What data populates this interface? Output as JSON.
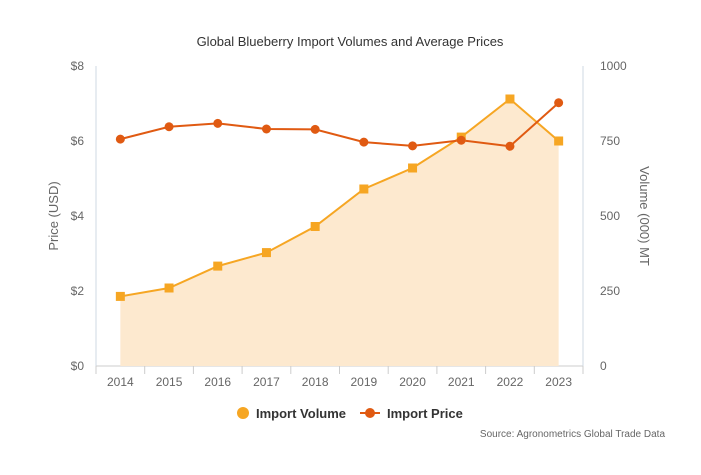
{
  "chart_data": {
    "type": "line",
    "title": "Global Blueberry Import Volumes and Average Prices",
    "categories": [
      "2014",
      "2015",
      "2016",
      "2017",
      "2018",
      "2019",
      "2020",
      "2021",
      "2022",
      "2023"
    ],
    "y_left": {
      "label": "Price (USD)",
      "ylim": [
        0,
        8
      ],
      "ticks": [
        0,
        2,
        4,
        6,
        8
      ],
      "tick_labels": [
        "$0",
        "$2",
        "$4",
        "$6",
        "$8"
      ]
    },
    "y_right": {
      "label": "Volume (000) MT",
      "ylim": [
        0,
        1000
      ],
      "ticks": [
        0,
        250,
        500,
        750,
        1000
      ],
      "tick_labels": [
        "0",
        "250",
        "500",
        "750",
        "1000"
      ]
    },
    "series": [
      {
        "name": "Import Volume",
        "axis": "right",
        "style": "area",
        "marker": "square",
        "color": "#f6a623",
        "fill": "#fde9cf",
        "values": [
          232,
          260,
          333,
          378,
          465,
          590,
          660,
          763,
          890,
          750
        ]
      },
      {
        "name": "Import Price",
        "axis": "left",
        "style": "line",
        "marker": "circle",
        "color": "#e05a12",
        "values": [
          6.05,
          6.38,
          6.47,
          6.32,
          6.31,
          5.97,
          5.87,
          6.02,
          5.86,
          7.02
        ]
      }
    ],
    "grid": false,
    "legend": "bottom-center",
    "source": "Source: Agronometrics Global Trade Data"
  }
}
